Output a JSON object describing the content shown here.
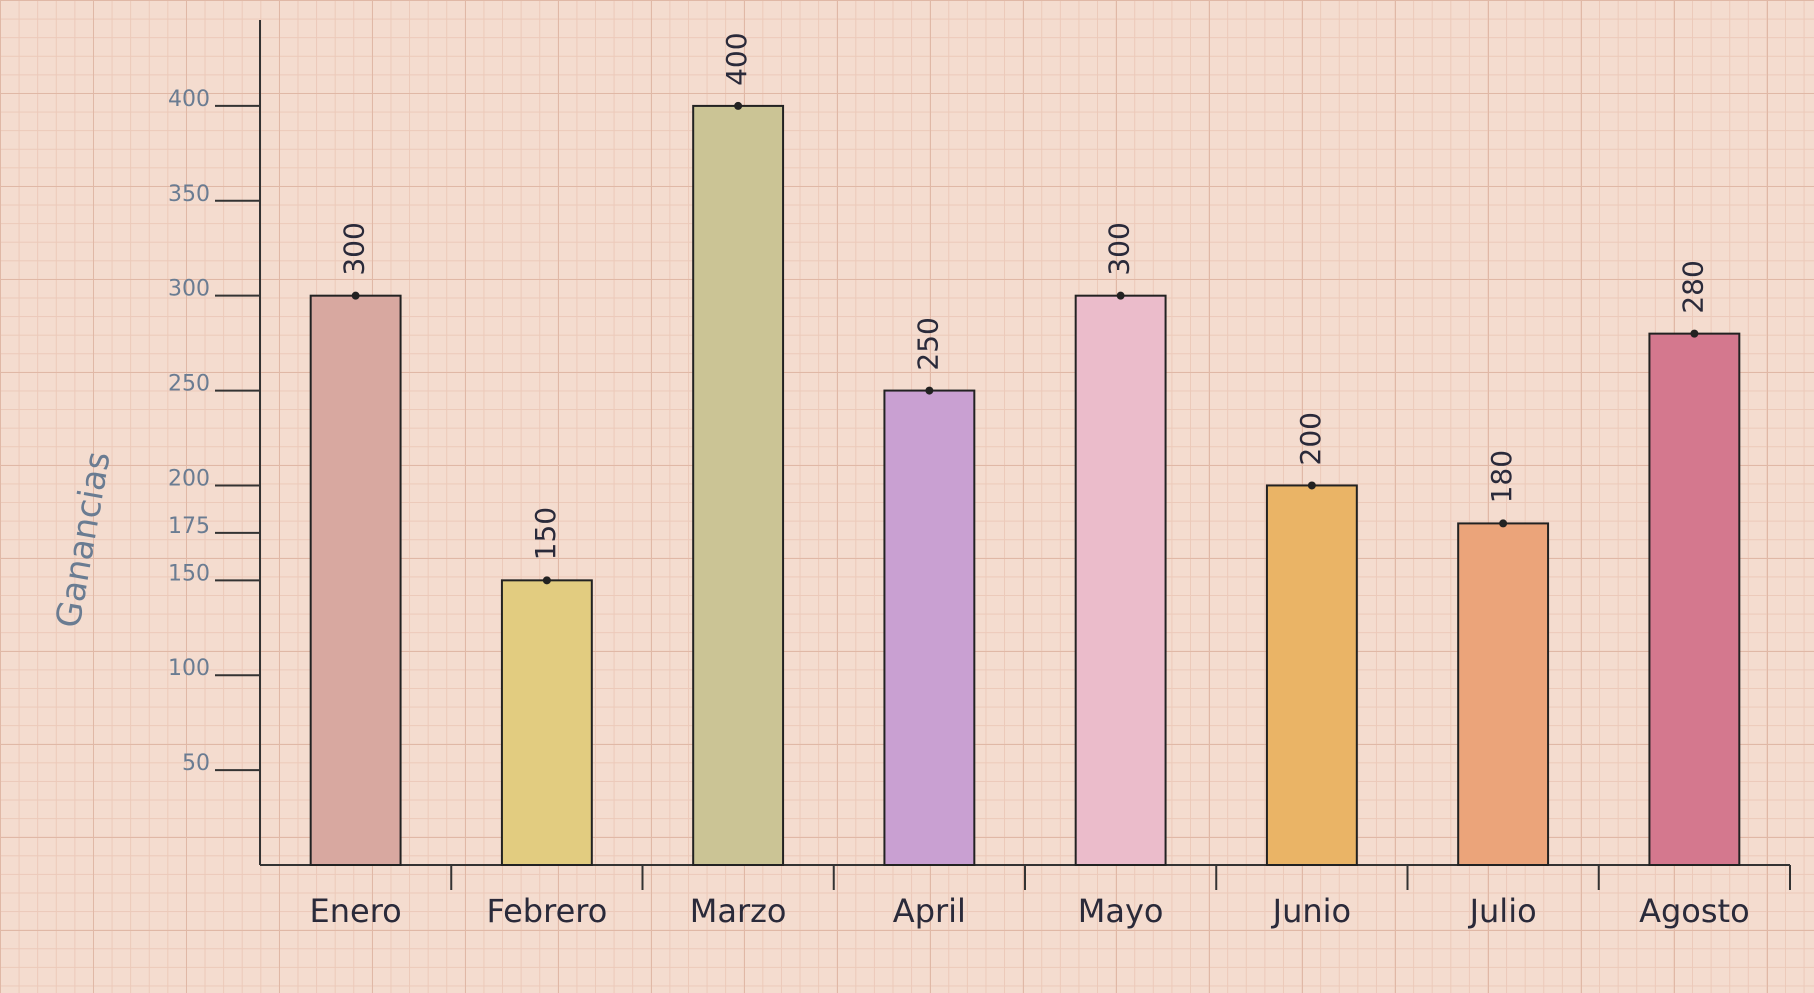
{
  "chart_data": {
    "type": "bar",
    "y_label": "Ganancias",
    "categories": [
      "Enero",
      "Febrero",
      "Marzo",
      "April",
      "Mayo",
      "Junio",
      "Julio",
      "Agosto"
    ],
    "values": [
      300,
      150,
      400,
      250,
      300,
      200,
      180,
      280
    ],
    "colors": [
      "#d8a8a0",
      "#e2cc80",
      "#cbc495",
      "#c9a0d2",
      "#ebbccb",
      "#eab466",
      "#eba47a",
      "#d4788e"
    ],
    "ylim": [
      0,
      440
    ],
    "yticks": [
      50,
      100,
      150,
      175,
      200,
      250,
      300,
      350,
      400
    ]
  }
}
